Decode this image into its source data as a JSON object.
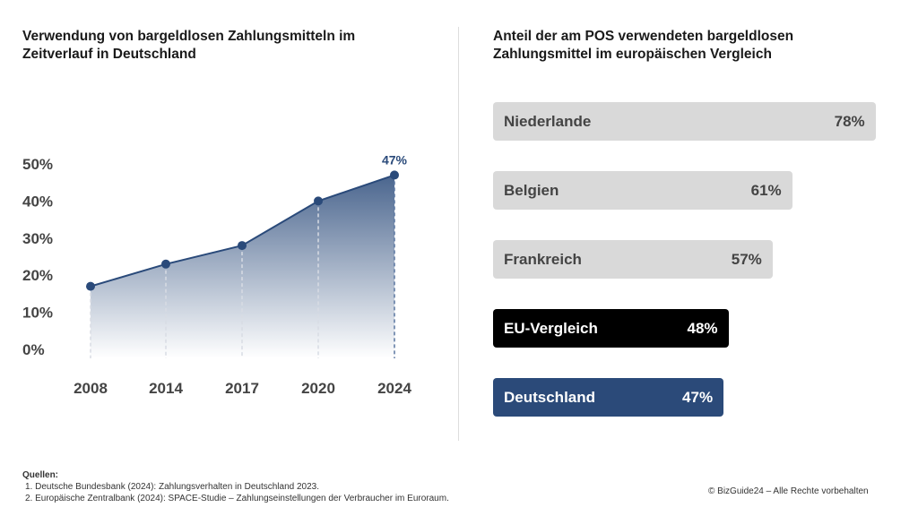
{
  "chart_data": [
    {
      "type": "area",
      "title": "Verwendung von bargeldlosen Zahlungsmitteln im Zeitverlauf in Deutschland",
      "categories": [
        "2008",
        "2014",
        "2017",
        "2020",
        "2024"
      ],
      "values": [
        17,
        23,
        28,
        40,
        47
      ],
      "yticks": [
        "0%",
        "10%",
        "20%",
        "30%",
        "40%",
        "50%"
      ],
      "ylim": [
        0,
        50
      ],
      "annotation": "47%",
      "color": "#2a4a7a"
    },
    {
      "type": "bar",
      "title": "Anteil der am POS verwendeten bargeldlosen Zahlungsmittel im europäischen Vergleich",
      "categories": [
        "Niederlande",
        "Belgien",
        "Frankreich",
        "EU-Vergleich",
        "Deutschland"
      ],
      "values": [
        78,
        61,
        57,
        48,
        47
      ],
      "labels": [
        "78%",
        "61%",
        "57%",
        "48%",
        "47%"
      ],
      "colors": [
        "#d9d9d9",
        "#d9d9d9",
        "#d9d9d9",
        "#000000",
        "#2b4a79"
      ]
    }
  ],
  "footer": {
    "sources_title": "Quellen:",
    "sources": [
      "1. Deutsche Bundesbank (2024): Zahlungsverhalten in Deutschland 2023.",
      "2. Europäische Zentralbank (2024): SPACE-Studie – Zahlungseinstellungen der Verbraucher im Euroraum."
    ],
    "copyright": "© BizGuide24 – Alle Rechte vorbehalten"
  }
}
